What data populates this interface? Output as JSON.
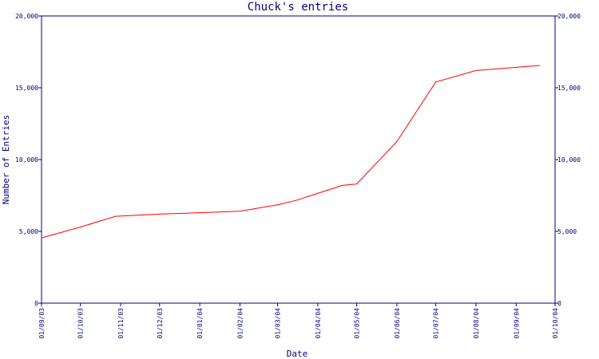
{
  "chart_data": {
    "type": "line",
    "title": "Chuck's entries",
    "xlabel": "Date",
    "ylabel": "Number of Entries",
    "ylim": [
      0,
      20000
    ],
    "y_ticks": [
      0,
      5000,
      10000,
      15000,
      20000
    ],
    "y_tick_labels": [
      "0",
      "5,000",
      "10,000",
      "15,000",
      "20,000"
    ],
    "x_tick_labels": [
      "01/09/03",
      "01/10/03",
      "01/11/03",
      "01/12/03",
      "01/01/04",
      "01/02/04",
      "01/03/04",
      "01/04/04",
      "01/05/04",
      "01/06/04",
      "01/07/04",
      "01/08/04",
      "01/09/04",
      "01/10/04"
    ],
    "series": [
      {
        "color": "#ff0000",
        "x": [
          "2003-09-01",
          "2003-10-01",
          "2003-10-28",
          "2003-12-01",
          "2004-01-01",
          "2004-02-01",
          "2004-03-01",
          "2004-03-15",
          "2004-04-20",
          "2004-05-01",
          "2004-06-01",
          "2004-07-01",
          "2004-08-01",
          "2004-09-19"
        ],
        "values": [
          4550,
          5300,
          6050,
          6200,
          6300,
          6400,
          6850,
          7150,
          8200,
          8300,
          11250,
          15400,
          16200,
          16550
        ]
      }
    ],
    "grid": false,
    "colors": {
      "axis": "#00007f",
      "line": "#ff0000",
      "background": "#ffffff"
    }
  }
}
